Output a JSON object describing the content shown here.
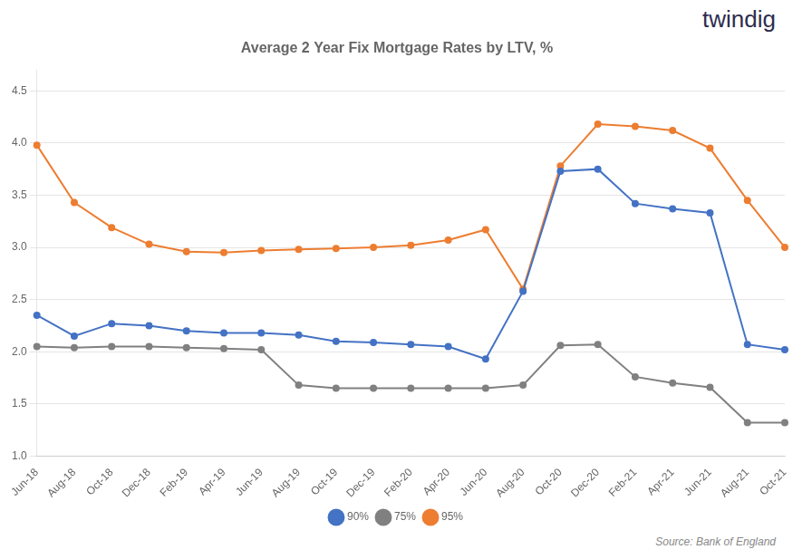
{
  "chart_data": {
    "type": "line",
    "title": "Average 2 Year Fix Mortgage Rates by LTV, %",
    "categories": [
      "Jun-18",
      "Aug-18",
      "Oct-18",
      "Dec-18",
      "Feb-19",
      "Apr-19",
      "Jun-19",
      "Aug-19",
      "Oct-19",
      "Dec-19",
      "Feb-20",
      "Apr-20",
      "Jun-20",
      "Aug-20",
      "Oct-20",
      "Dec-20",
      "Feb-21",
      "Apr-21",
      "Jun-21",
      "Aug-21",
      "Oct-21"
    ],
    "series": [
      {
        "name": "90%",
        "color": "#4472C4",
        "marker": "circle",
        "values": [
          2.35,
          2.15,
          2.27,
          2.25,
          2.2,
          2.18,
          2.18,
          2.16,
          2.1,
          2.09,
          2.07,
          2.05,
          1.93,
          2.58,
          3.73,
          3.75,
          3.42,
          3.37,
          3.33,
          2.07,
          2.02
        ]
      },
      {
        "name": "75%",
        "color": "#808080",
        "marker": "circle",
        "values": [
          2.05,
          2.04,
          2.05,
          2.05,
          2.04,
          2.03,
          2.02,
          1.68,
          1.65,
          1.65,
          1.65,
          1.65,
          1.65,
          1.68,
          2.06,
          2.07,
          1.76,
          1.7,
          1.66,
          1.32,
          1.32
        ]
      },
      {
        "name": "95%",
        "color": "#ED7D31",
        "marker": "circle",
        "values": [
          3.98,
          3.43,
          3.19,
          3.03,
          2.96,
          2.95,
          2.97,
          2.98,
          2.99,
          3.0,
          3.02,
          3.07,
          3.17,
          2.6,
          3.78,
          4.18,
          4.16,
          4.12,
          3.95,
          3.45,
          3.0
        ]
      }
    ],
    "ylim": [
      1.0,
      4.7
    ],
    "yticks": [
      {
        "value": 1.0,
        "label": "1.0"
      },
      1.5,
      {
        "value": 2.0,
        "label": "2.0"
      },
      2.5,
      {
        "value": 3.0,
        "label": "3.0"
      },
      3.5,
      {
        "value": 4.0,
        "label": "4.0"
      },
      4.5
    ],
    "grid": true,
    "legend": "bottom",
    "annotations": [
      {
        "text": "twindig",
        "color": "#2d2d4e"
      },
      {
        "text": "Source: Bank of England",
        "color": "#888888"
      }
    ]
  }
}
